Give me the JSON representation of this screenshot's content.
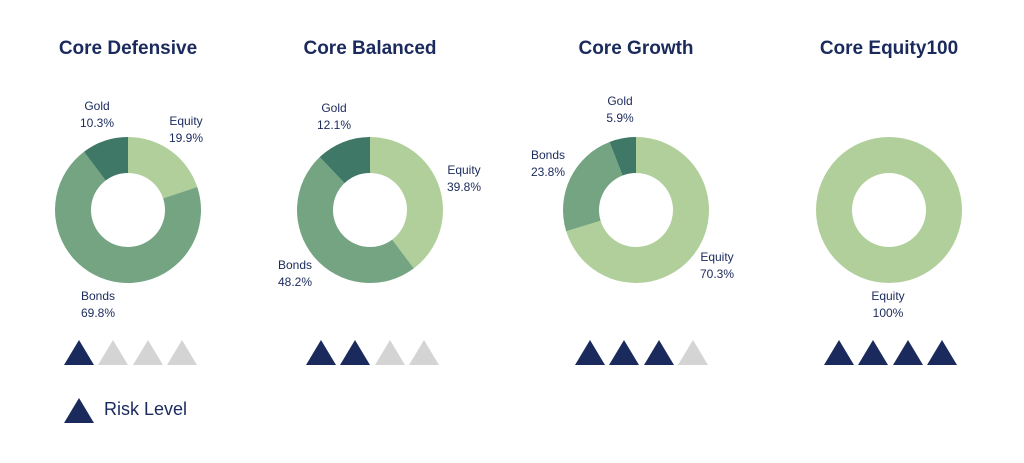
{
  "colors": {
    "Equity": "#b1cf9b",
    "Bonds": "#74a481",
    "Gold": "#3f7867",
    "risk_on": "#1b2a5c",
    "risk_off": "#d4d4d4",
    "text": "#1b2a5c"
  },
  "chart_data": [
    {
      "type": "pie",
      "title": "Core Defensive",
      "slices": [
        {
          "label": "Equity",
          "value": 19.9,
          "display": "19.9%"
        },
        {
          "label": "Bonds",
          "value": 69.8,
          "display": "69.8%"
        },
        {
          "label": "Gold",
          "value": 10.3,
          "display": "10.3%"
        }
      ],
      "risk_level": 1,
      "risk_max": 4
    },
    {
      "type": "pie",
      "title": "Core Balanced",
      "slices": [
        {
          "label": "Equity",
          "value": 39.8,
          "display": "39.8%"
        },
        {
          "label": "Bonds",
          "value": 48.2,
          "display": "48.2%"
        },
        {
          "label": "Gold",
          "value": 12.1,
          "display": "12.1%"
        }
      ],
      "risk_level": 2,
      "risk_max": 4
    },
    {
      "type": "pie",
      "title": "Core Growth",
      "slices": [
        {
          "label": "Equity",
          "value": 70.3,
          "display": "70.3%"
        },
        {
          "label": "Bonds",
          "value": 23.8,
          "display": "23.8%"
        },
        {
          "label": "Gold",
          "value": 5.9,
          "display": "5.9%"
        }
      ],
      "risk_level": 3,
      "risk_max": 4
    },
    {
      "type": "pie",
      "title": "Core Equity100",
      "slices": [
        {
          "label": "Equity",
          "value": 100,
          "display": "100%"
        }
      ],
      "risk_level": 4,
      "risk_max": 4
    }
  ],
  "legend": {
    "label": "Risk Level",
    "icon": "triangle-icon"
  }
}
